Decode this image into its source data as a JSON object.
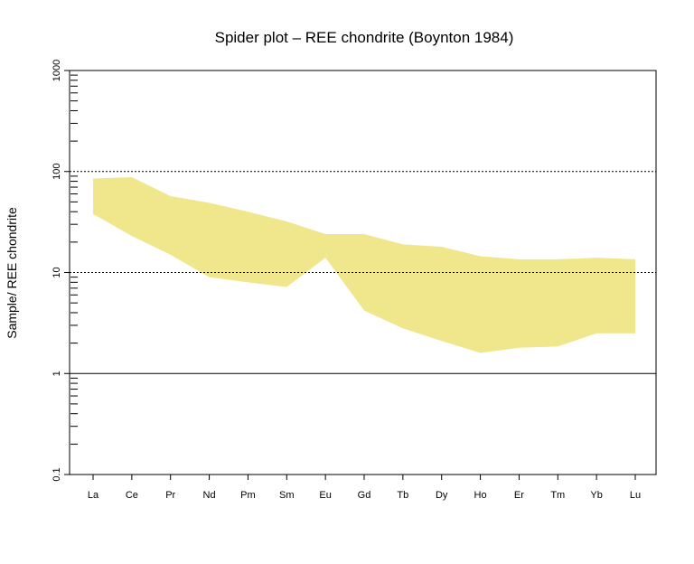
{
  "chart_data": {
    "type": "area",
    "title": "Spider plot –  REE chondrite (Boynton 1984)",
    "xlabel": "",
    "ylabel": "Sample/ REE chondrite",
    "yscale": "log",
    "ylim": [
      0.1,
      1000
    ],
    "y_ticks": [
      "0.1",
      "1",
      "10",
      "100",
      "1000"
    ],
    "categories": [
      "La",
      "Ce",
      "Pr",
      "Nd",
      "Pm",
      "Sm",
      "Eu",
      "Gd",
      "Tb",
      "Dy",
      "Ho",
      "Er",
      "Tm",
      "Yb",
      "Lu"
    ],
    "band_upper": [
      85,
      88,
      57,
      49,
      40,
      32,
      24,
      24,
      19,
      18,
      14.5,
      13.5,
      13.5,
      14,
      13.5
    ],
    "band_lower": [
      38,
      23,
      15,
      9,
      8,
      7.2,
      14,
      4.2,
      2.8,
      2.1,
      1.6,
      1.8,
      1.85,
      2.5,
      2.5
    ],
    "reference_lines": [
      {
        "y": 100,
        "style": "dotted"
      },
      {
        "y": 10,
        "style": "dotted"
      },
      {
        "y": 1,
        "style": "solid"
      }
    ],
    "fill_color": "#f0e68c",
    "grid": false,
    "legend": "none"
  }
}
